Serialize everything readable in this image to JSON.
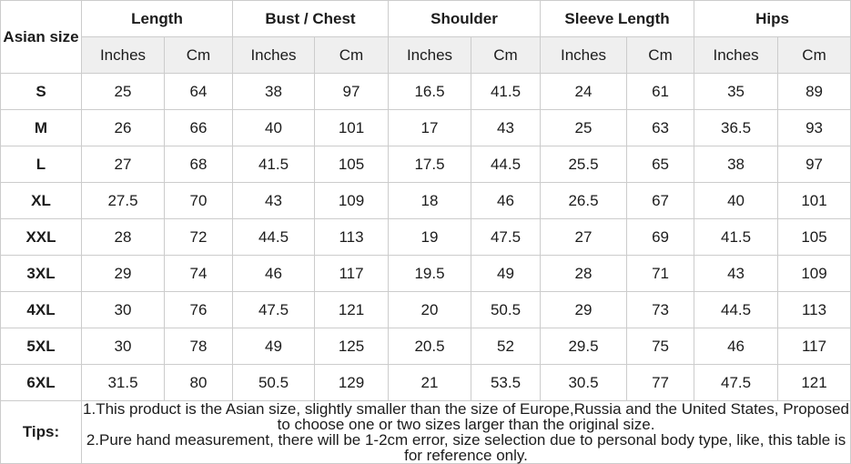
{
  "colors": {
    "inches_text": "#ff0000",
    "cm_text": "#1c1c1c",
    "subheader_bg": "#efefef",
    "border": "#cccccc"
  },
  "table": {
    "corner_header": "Asian size",
    "groups": [
      {
        "label": "Length"
      },
      {
        "label": "Bust / Chest"
      },
      {
        "label": "Shoulder"
      },
      {
        "label": "Sleeve Length"
      },
      {
        "label": "Hips"
      }
    ],
    "unit_headers": {
      "inches": "Inches",
      "cm": "Cm"
    },
    "rows": [
      {
        "size": "S",
        "values": [
          25,
          64,
          38,
          97,
          16.5,
          41.5,
          24,
          61,
          35,
          89
        ]
      },
      {
        "size": "M",
        "values": [
          26,
          66,
          40,
          101,
          17,
          43,
          25,
          63,
          36.5,
          93
        ]
      },
      {
        "size": "L",
        "values": [
          27,
          68,
          41.5,
          105,
          17.5,
          44.5,
          25.5,
          65,
          38,
          97
        ]
      },
      {
        "size": "XL",
        "values": [
          27.5,
          70,
          43,
          109,
          18,
          46,
          26.5,
          67,
          40,
          101
        ]
      },
      {
        "size": "XXL",
        "values": [
          28,
          72,
          44.5,
          113,
          19,
          47.5,
          27,
          69,
          41.5,
          105
        ]
      },
      {
        "size": "3XL",
        "values": [
          29,
          74,
          46,
          117,
          19.5,
          49,
          28,
          71,
          43,
          109
        ]
      },
      {
        "size": "4XL",
        "values": [
          30,
          76,
          47.5,
          121,
          20,
          50.5,
          29,
          73,
          44.5,
          113
        ]
      },
      {
        "size": "5XL",
        "values": [
          30,
          78,
          49,
          125,
          20.5,
          52,
          29.5,
          75,
          46,
          117
        ]
      },
      {
        "size": "6XL",
        "values": [
          31.5,
          80,
          50.5,
          129,
          21,
          53.5,
          30.5,
          77,
          47.5,
          121
        ]
      }
    ]
  },
  "tips": {
    "label": "Tips:",
    "notes": [
      "1.This product is the Asian size, slightly smaller than the size of Europe,Russia and the United States, Proposed to choose one or two sizes larger than the original size.",
      "2.Pure hand measurement, there will be 1-2cm error, size selection due to personal body type, like, this table is for reference only."
    ]
  }
}
